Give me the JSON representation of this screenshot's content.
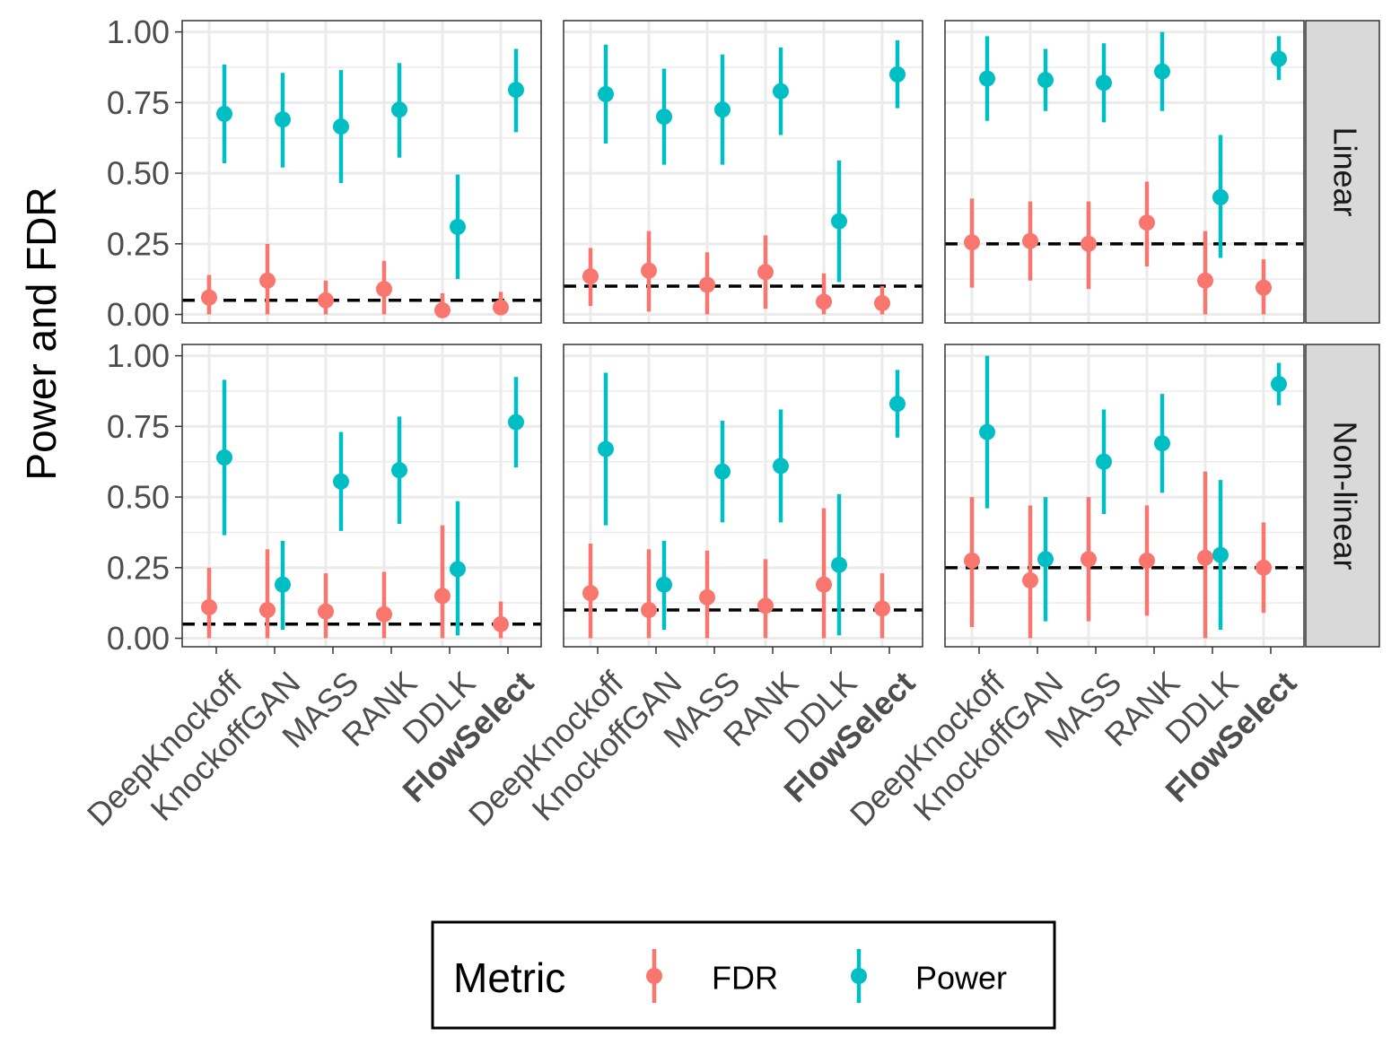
{
  "chart_data": {
    "type": "scatter",
    "ylabel": "Power and FDR",
    "ylim": [
      -0.03,
      1.04
    ],
    "yticks": [
      "0.00",
      "0.25",
      "0.50",
      "0.75",
      "1.00"
    ],
    "ytick_values": [
      0,
      0.25,
      0.5,
      0.75,
      1.0
    ],
    "categories": [
      "DeepKnockoff",
      "KnockoffGAN",
      "MASS",
      "RANK",
      "DDLK",
      "FlowSelect"
    ],
    "bold_category": "FlowSelect",
    "rows": [
      "Linear",
      "Non-linear"
    ],
    "grid": true,
    "legend": {
      "title": "Metric",
      "position": "bottom",
      "entries": [
        {
          "name": "FDR",
          "color": "#F8766D"
        },
        {
          "name": "Power",
          "color": "#00BFC4"
        }
      ]
    },
    "panels": [
      {
        "row": "Linear",
        "col": 1,
        "threshold": 0.05,
        "fdr": {
          "values": [
            0.06,
            0.12,
            0.05,
            0.09,
            0.015,
            0.025
          ],
          "low": [
            0.0,
            0.0,
            0.0,
            0.0,
            0.0,
            0.0
          ],
          "high": [
            0.14,
            0.25,
            0.12,
            0.19,
            0.075,
            0.08
          ]
        },
        "power": {
          "values": [
            0.71,
            0.69,
            0.665,
            0.725,
            0.31,
            0.795
          ],
          "low": [
            0.535,
            0.52,
            0.465,
            0.555,
            0.125,
            0.645
          ],
          "high": [
            0.885,
            0.855,
            0.865,
            0.89,
            0.495,
            0.94
          ]
        }
      },
      {
        "row": "Linear",
        "col": 2,
        "threshold": 0.1,
        "fdr": {
          "values": [
            0.135,
            0.155,
            0.105,
            0.15,
            0.045,
            0.04
          ],
          "low": [
            0.03,
            0.01,
            0.0,
            0.02,
            0.0,
            0.0
          ],
          "high": [
            0.235,
            0.295,
            0.22,
            0.28,
            0.145,
            0.1
          ]
        },
        "power": {
          "values": [
            0.78,
            0.7,
            0.725,
            0.79,
            0.33,
            0.85
          ],
          "low": [
            0.605,
            0.53,
            0.53,
            0.635,
            0.115,
            0.73
          ],
          "high": [
            0.955,
            0.87,
            0.92,
            0.945,
            0.545,
            0.97
          ]
        }
      },
      {
        "row": "Linear",
        "col": 3,
        "threshold": 0.25,
        "fdr": {
          "values": [
            0.255,
            0.26,
            0.25,
            0.325,
            0.12,
            0.095
          ],
          "low": [
            0.095,
            0.12,
            0.09,
            0.17,
            0.0,
            0.0
          ],
          "high": [
            0.41,
            0.4,
            0.4,
            0.47,
            0.295,
            0.195
          ]
        },
        "power": {
          "values": [
            0.835,
            0.83,
            0.82,
            0.86,
            0.415,
            0.905
          ],
          "low": [
            0.685,
            0.72,
            0.68,
            0.72,
            0.2,
            0.83
          ],
          "high": [
            0.985,
            0.94,
            0.96,
            1.0,
            0.635,
            0.985
          ]
        }
      },
      {
        "row": "Non-linear",
        "col": 1,
        "threshold": 0.05,
        "fdr": {
          "values": [
            0.11,
            0.1,
            0.095,
            0.085,
            0.15,
            0.05
          ],
          "low": [
            0.0,
            0.0,
            0.0,
            0.0,
            0.0,
            0.0
          ],
          "high": [
            0.25,
            0.315,
            0.23,
            0.235,
            0.4,
            0.13
          ]
        },
        "power": {
          "values": [
            0.64,
            0.19,
            0.555,
            0.595,
            0.245,
            0.765
          ],
          "low": [
            0.365,
            0.03,
            0.38,
            0.405,
            0.01,
            0.605
          ],
          "high": [
            0.915,
            0.345,
            0.73,
            0.785,
            0.485,
            0.925
          ]
        }
      },
      {
        "row": "Non-linear",
        "col": 2,
        "threshold": 0.1,
        "fdr": {
          "values": [
            0.16,
            0.1,
            0.145,
            0.115,
            0.19,
            0.105
          ],
          "low": [
            0.0,
            0.0,
            0.0,
            0.0,
            0.0,
            0.0
          ],
          "high": [
            0.335,
            0.315,
            0.31,
            0.28,
            0.46,
            0.23
          ]
        },
        "power": {
          "values": [
            0.67,
            0.19,
            0.59,
            0.61,
            0.26,
            0.83
          ],
          "low": [
            0.4,
            0.03,
            0.41,
            0.41,
            0.01,
            0.71
          ],
          "high": [
            0.94,
            0.345,
            0.77,
            0.81,
            0.51,
            0.95
          ]
        }
      },
      {
        "row": "Non-linear",
        "col": 3,
        "threshold": 0.25,
        "fdr": {
          "values": [
            0.275,
            0.205,
            0.28,
            0.275,
            0.285,
            0.25
          ],
          "low": [
            0.04,
            0.0,
            0.06,
            0.08,
            0.0,
            0.09
          ],
          "high": [
            0.5,
            0.47,
            0.5,
            0.47,
            0.59,
            0.41
          ]
        },
        "power": {
          "values": [
            0.73,
            0.28,
            0.625,
            0.69,
            0.295,
            0.9
          ],
          "low": [
            0.46,
            0.06,
            0.44,
            0.515,
            0.03,
            0.825
          ],
          "high": [
            1.0,
            0.5,
            0.81,
            0.865,
            0.56,
            0.975
          ]
        }
      }
    ]
  }
}
